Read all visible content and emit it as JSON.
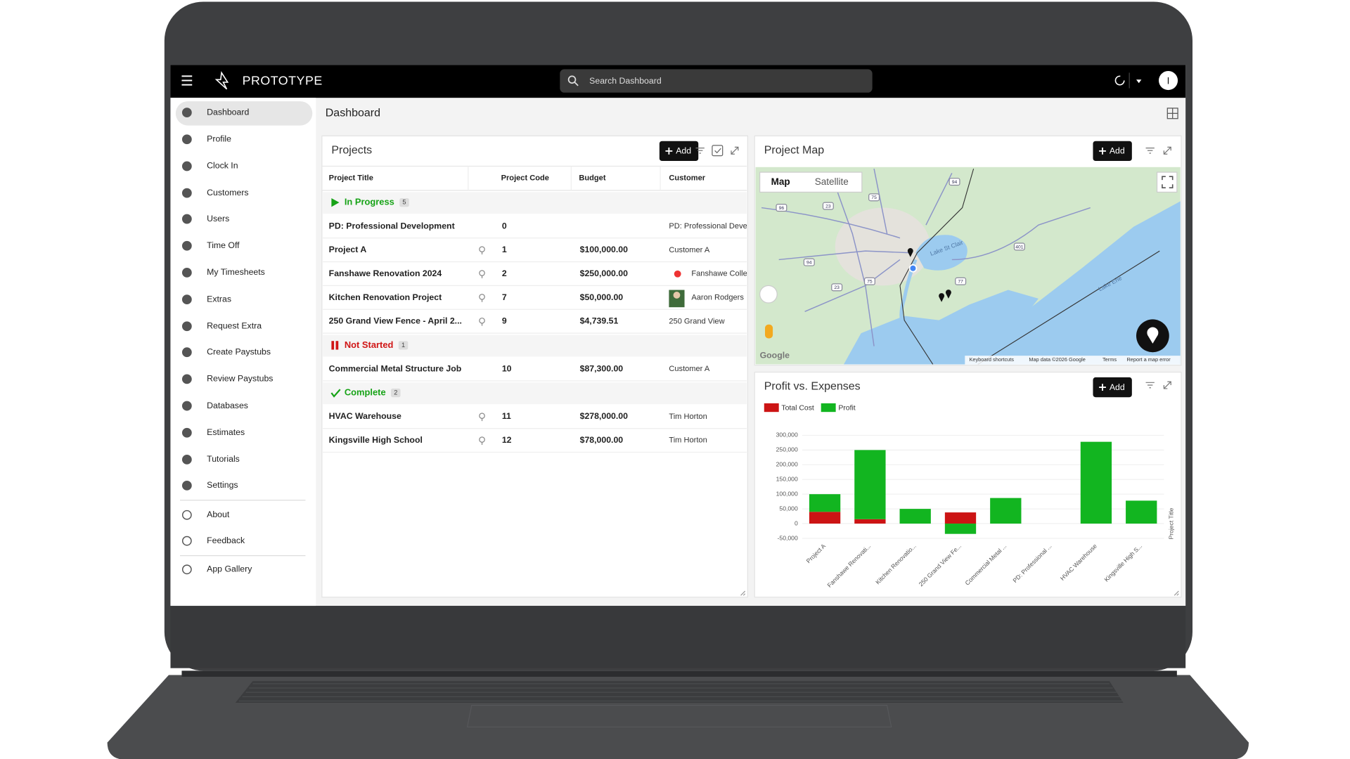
{
  "header": {
    "brand": "PROTOTYPE",
    "search_placeholder": "Search Dashboard",
    "avatar": "I"
  },
  "sidebar": {
    "items": [
      "Dashboard",
      "Profile",
      "Clock In",
      "Customers",
      "Users",
      "Time Off",
      "My Timesheets",
      "Extras",
      "Request Extra",
      "Create Paystubs",
      "Review Paystubs",
      "Databases",
      "Estimates",
      "Tutorials",
      "Settings",
      "About",
      "Feedback",
      "App Gallery"
    ]
  },
  "page_title": "Dashboard",
  "projects": {
    "title": "Projects",
    "add": "Add",
    "columns": [
      "Project Title",
      "Project Code",
      "Budget",
      "Customer"
    ],
    "groups": [
      {
        "label": "In Progress",
        "count": 5,
        "rows": [
          {
            "title": "PD: Professional Development",
            "code": "0",
            "customer": "PD: Professional Devel"
          },
          {
            "title": "Project A",
            "code": "1",
            "budget": "$100,000.00",
            "customer": "Customer A"
          },
          {
            "title": "Fanshawe Renovation 2024",
            "code": "2",
            "budget": "$250,000.00",
            "customer": "Fanshawe Colle"
          },
          {
            "title": "Kitchen Renovation Project",
            "code": "7",
            "budget": "$50,000.00",
            "customer": "Aaron Rodgers"
          },
          {
            "title": "250 Grand View Fence - April 2...",
            "code": "9",
            "budget": "$4,739.51",
            "customer": "250 Grand View"
          }
        ]
      },
      {
        "label": "Not Started",
        "count": 1,
        "rows": [
          {
            "title": "Commercial Metal Structure Job",
            "code": "10",
            "budget": "$87,300.00",
            "customer": "Customer A"
          }
        ]
      },
      {
        "label": "Complete",
        "count": 2,
        "rows": [
          {
            "title": "HVAC Warehouse",
            "code": "11",
            "budget": "$278,000.00",
            "customer": "Tim Horton"
          },
          {
            "title": "Kingsville High School",
            "code": "12",
            "budget": "$78,000.00",
            "customer": "Tim Horton"
          }
        ]
      }
    ]
  },
  "map": {
    "title": "Project Map",
    "add": "Add",
    "tabs": [
      "Map",
      "Satellite"
    ],
    "labels": [
      "Lake St Clair",
      "Lake Erie"
    ],
    "shields": [
      "94",
      "23",
      "75",
      "96",
      "94",
      "401",
      "75",
      "23",
      "77"
    ],
    "logo": "Google",
    "attribution": [
      "Keyboard shortcuts",
      "Map data ©2026 Google",
      "Terms",
      "Report a map error"
    ]
  },
  "profit_chart": {
    "type": "bar",
    "stacked": true,
    "title": "Profit vs. Expenses",
    "add": "Add",
    "categories": [
      "Project A",
      "Fanshawe Renovati...",
      "Kitchen Renovatio...",
      "250 Grand View Fe...",
      "Commercial Metal ...",
      "PD: Professional ...",
      "HVAC Warehouse",
      "Kingsville High S..."
    ],
    "series": [
      {
        "name": "Total Cost",
        "color": "#cc1414",
        "values": [
          40000,
          15000,
          0,
          38000,
          0,
          0,
          0,
          0
        ]
      },
      {
        "name": "Profit",
        "color": "#12b520",
        "values": [
          60000,
          235000,
          50000,
          -35000,
          87000,
          0,
          278000,
          78000
        ]
      }
    ],
    "ylim": [
      -50000,
      300000
    ],
    "yticks": [
      {
        "value": 300000,
        "label": "300,000"
      },
      {
        "value": 250000,
        "label": "250,000"
      },
      {
        "value": 200000,
        "label": "200,000"
      },
      {
        "value": 150000,
        "label": "150,000"
      },
      {
        "value": 100000,
        "label": "100,000"
      },
      {
        "value": 50000,
        "label": "50,000"
      },
      0,
      {
        "value": -50000,
        "label": "-50,000"
      }
    ],
    "x_label": "Project Title"
  }
}
